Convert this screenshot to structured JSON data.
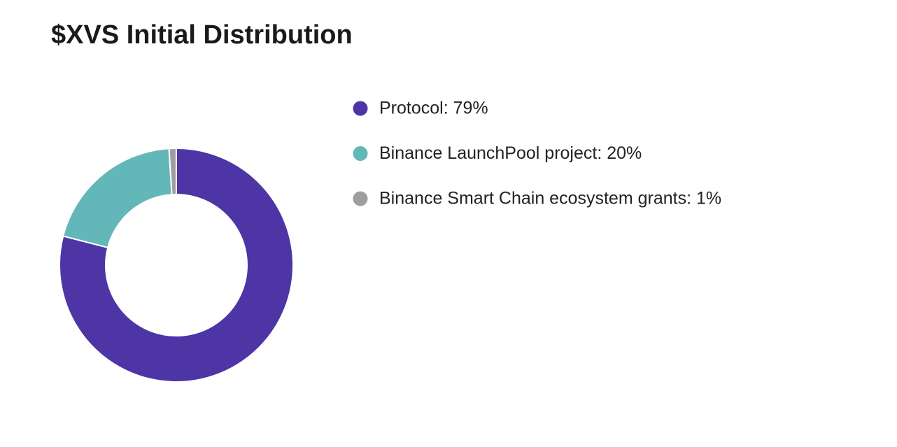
{
  "chart_data": {
    "type": "donut",
    "title": "$XVS Initial Distribution",
    "categories": [
      "Protocol: 79%",
      "Binance LaunchPool project: 20%",
      "Binance Smart Chain ecosystem grants: 1%"
    ],
    "values": [
      79,
      20,
      1
    ],
    "colors": [
      "#4e35a6",
      "#63b7b8",
      "#9e9e9e"
    ],
    "legend": "right"
  }
}
